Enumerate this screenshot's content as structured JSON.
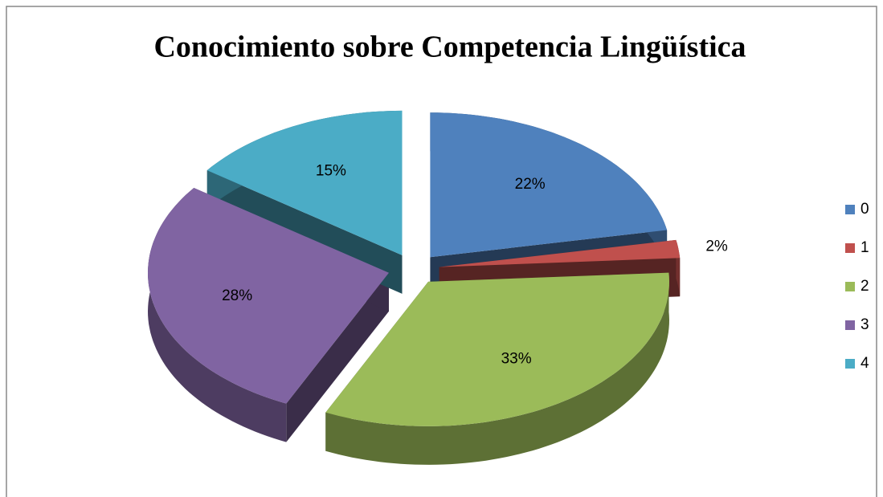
{
  "chart_data": {
    "type": "pie3d",
    "title": "Conocimiento sobre Competencia Lingüística",
    "categories": [
      "0",
      "1",
      "2",
      "3",
      "4"
    ],
    "values": [
      22,
      2,
      33,
      28,
      15
    ],
    "value_labels": [
      "22%",
      "2%",
      "33%",
      "28%",
      "15%"
    ],
    "colors": [
      "#4f81bd",
      "#c0504d",
      "#9bbb59",
      "#8064a2",
      "#4bacc6"
    ],
    "legend": "right"
  }
}
